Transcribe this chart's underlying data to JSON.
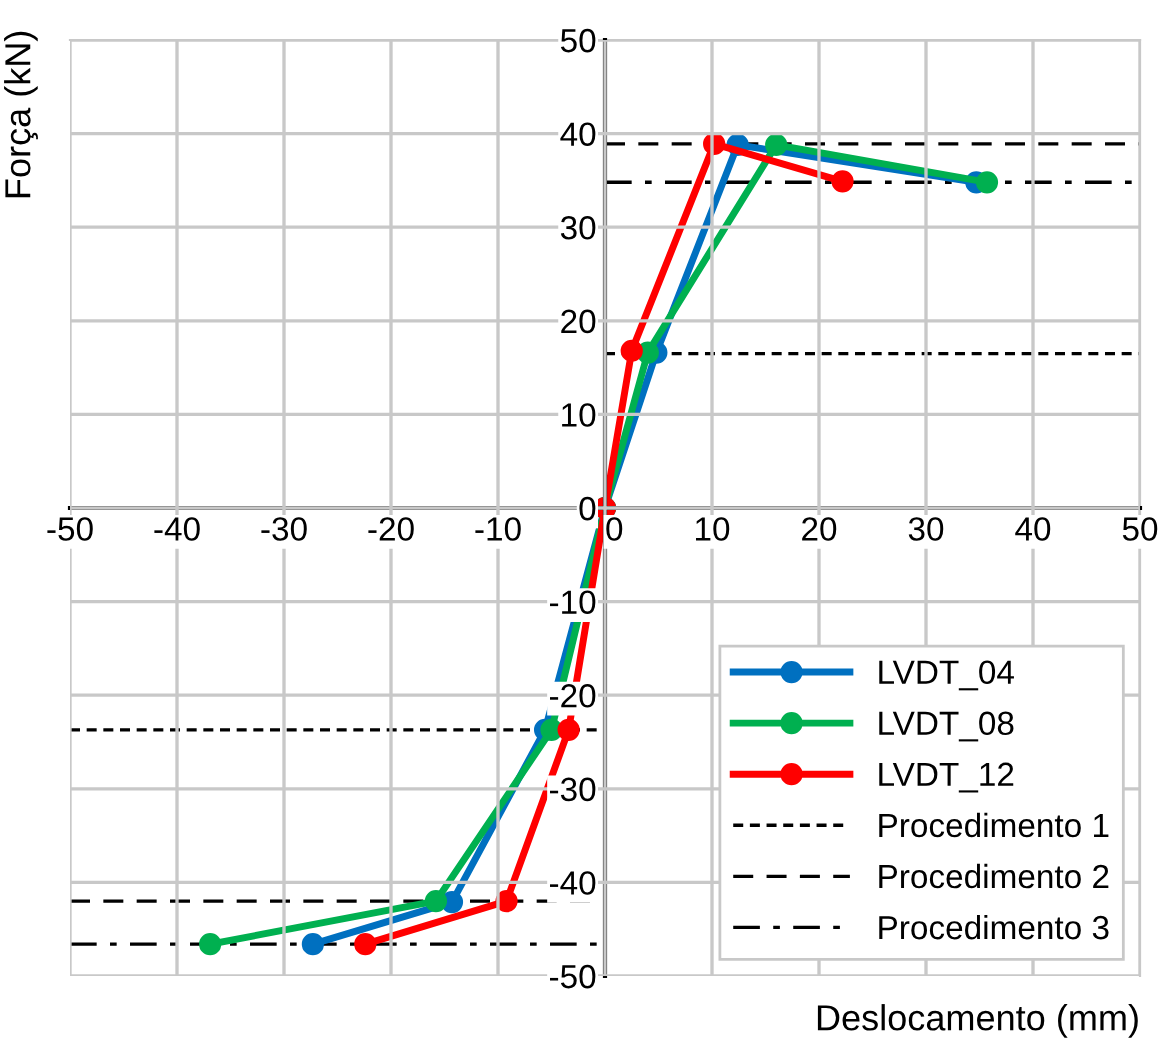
{
  "chart_data": {
    "type": "line",
    "xlabel": "Deslocamento (mm)",
    "ylabel": "Força (kN)",
    "xlim": [
      -50,
      50
    ],
    "ylim": [
      -50,
      50
    ],
    "xticks": [
      -50,
      -40,
      -30,
      -20,
      -10,
      0,
      10,
      20,
      30,
      40,
      50
    ],
    "yticks": [
      -50,
      -40,
      -30,
      -20,
      -10,
      0,
      10,
      20,
      30,
      40,
      50
    ],
    "grid": true,
    "legend": "bottom right",
    "marker": "circle",
    "line_style": "solid",
    "series": [
      {
        "name": "LVDT_04",
        "color": "#0070c0",
        "x": [
          -27.3,
          -14.3,
          -5.6,
          0,
          4.8,
          12.4,
          34.7
        ],
        "values": [
          -46.6,
          -42.1,
          -23.7,
          0,
          16.6,
          38.8,
          34.8
        ]
      },
      {
        "name": "LVDT_08",
        "color": "#00b050",
        "x": [
          -36.9,
          -15.8,
          -5.0,
          0,
          4.0,
          16.0,
          35.7
        ],
        "values": [
          -46.6,
          -42.0,
          -23.7,
          0,
          16.6,
          38.8,
          34.8
        ]
      },
      {
        "name": "LVDT_12",
        "color": "#ff0000",
        "x": [
          -22.4,
          -9.2,
          -3.4,
          0,
          2.5,
          10.2,
          22.2
        ],
        "values": [
          -46.6,
          -42.0,
          -23.7,
          0,
          16.8,
          38.9,
          34.9
        ]
      }
    ],
    "ref_lines": [
      {
        "axis": "y",
        "value": 16.5,
        "label": "Procedimento 1",
        "color": "#000000",
        "line_style": "dotted"
      },
      {
        "axis": "y",
        "value": -23.7,
        "color": "#000000",
        "line_style": "dotted"
      },
      {
        "axis": "y",
        "value": 38.9,
        "label": "Procedimento 2",
        "color": "#000000",
        "line_style": "dashed"
      },
      {
        "axis": "y",
        "value": -42.0,
        "color": "#000000",
        "line_style": "dashed"
      },
      {
        "axis": "y",
        "value": 34.8,
        "label": "Procedimento 3",
        "color": "#000000",
        "line_style": "dashdot"
      },
      {
        "axis": "y",
        "value": -46.6,
        "color": "#000000",
        "line_style": "dashdot"
      }
    ]
  }
}
